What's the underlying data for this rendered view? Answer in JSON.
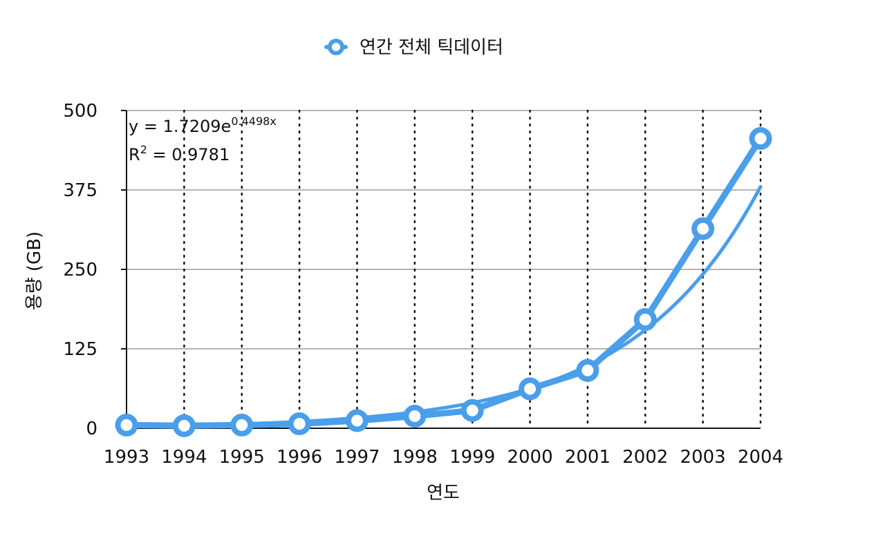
{
  "chart_data": {
    "type": "line",
    "legend": {
      "entries": [
        "연간 전체 틱데이터"
      ],
      "placement": "top-center"
    },
    "x": [
      "1993",
      "1994",
      "1995",
      "1996",
      "1997",
      "1998",
      "1999",
      "2000",
      "2001",
      "2002",
      "2003",
      "2004"
    ],
    "series": [
      {
        "name": "연간 전체 틱데이터",
        "values": [
          5,
          4,
          5,
          7,
          12,
          19,
          28,
          62,
          91,
          171,
          314,
          456
        ],
        "marker": "circle",
        "color": "#4A9EEA"
      }
    ],
    "trendline": {
      "type": "exponential",
      "a": 1.7209,
      "b": 0.4498,
      "equation": {
        "prefix": "y = 1.7209e",
        "exponent": "0.4498x"
      },
      "r_squared": {
        "prefix": "R",
        "sup": "2",
        "rest": " = 0.9781"
      }
    },
    "xlabel": "연도",
    "ylabel": "용량 (GB)",
    "ylim": [
      0,
      500
    ],
    "yticks": [
      "0",
      "125",
      "250",
      "375",
      "500"
    ],
    "grid": {
      "horizontal": "solid",
      "vertical": "dotted"
    },
    "colors": {
      "series": "#4A9EEA",
      "grid_horizontal": "#b4b4b4",
      "grid_vertical": "#111111",
      "axis": "#111111"
    }
  }
}
